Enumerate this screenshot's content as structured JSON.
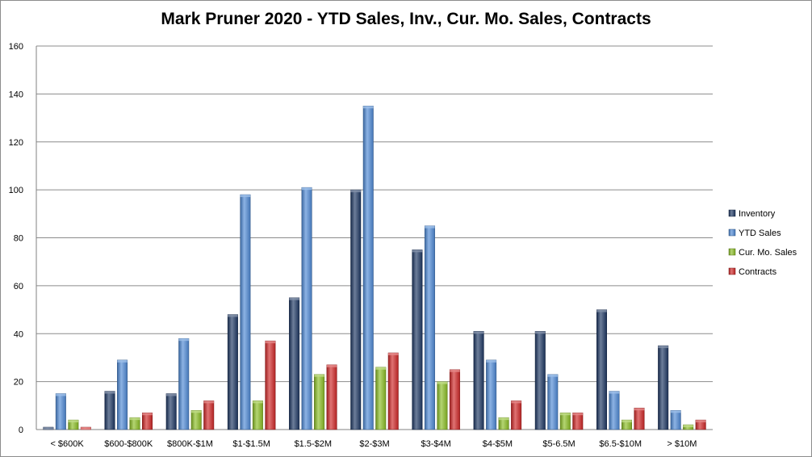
{
  "chart_data": {
    "type": "bar",
    "title": "Mark Pruner 2020 - YTD Sales, Inv., Cur. Mo. Sales, Contracts",
    "xlabel": "",
    "ylabel": "",
    "ylim": [
      0,
      160
    ],
    "yticks": [
      0,
      20,
      40,
      60,
      80,
      100,
      120,
      140,
      160
    ],
    "grid": true,
    "legend_position": "right",
    "categories": [
      "< $600K",
      "$600-$800K",
      "$800K-$1M",
      "$1-$1.5M",
      "$1.5-$2M",
      "$2-$3M",
      "$3-$4M",
      "$4-$5M",
      "$5-6.5M",
      "$6.5-$10M",
      "> $10M"
    ],
    "series": [
      {
        "name": "Inventory",
        "color": "#1f3864",
        "values": [
          1,
          16,
          15,
          48,
          55,
          100,
          75,
          41,
          41,
          50,
          35
        ]
      },
      {
        "name": "YTD Sales",
        "color": "#4f8ad6",
        "values": [
          15,
          29,
          38,
          98,
          101,
          135,
          85,
          29,
          23,
          16,
          8
        ]
      },
      {
        "name": "Cur. Mo. Sales",
        "color": "#8cbf26",
        "values": [
          4,
          5,
          8,
          12,
          23,
          26,
          20,
          5,
          7,
          4,
          2
        ]
      },
      {
        "name": "Contracts",
        "color": "#d02828",
        "values": [
          1,
          7,
          12,
          37,
          27,
          32,
          25,
          12,
          7,
          9,
          4
        ]
      }
    ]
  }
}
